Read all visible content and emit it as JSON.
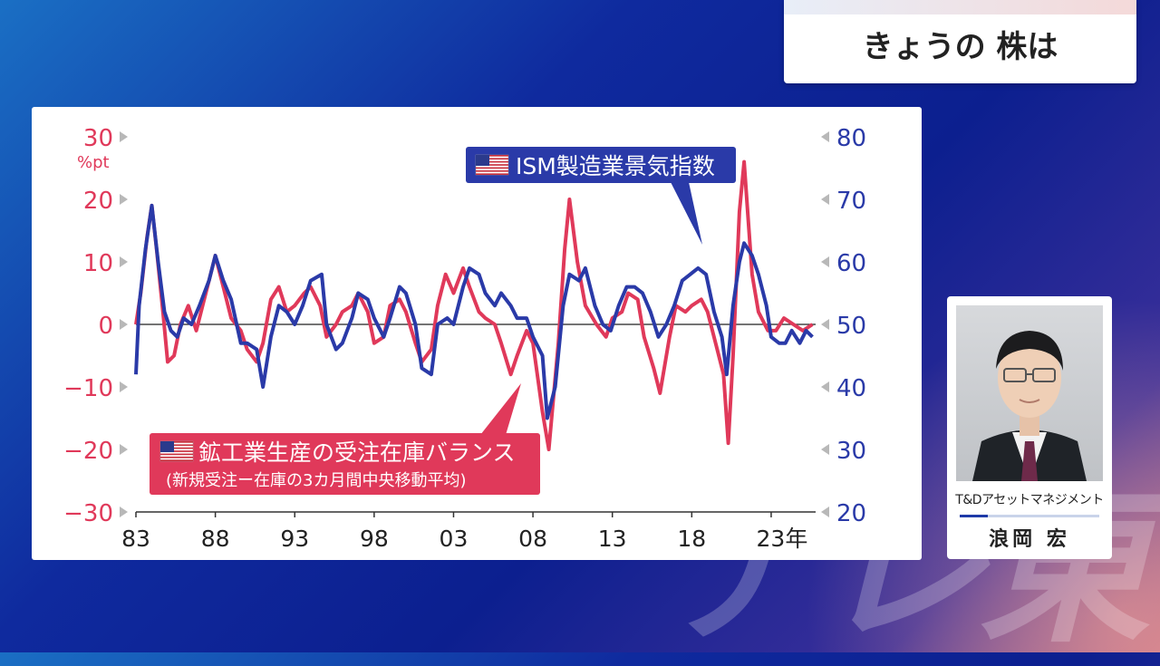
{
  "title_box": {
    "text": "きょうの 株は"
  },
  "watermark": {
    "text": "テレ東"
  },
  "person": {
    "org": "T&Dアセットマネジメント",
    "name": "浪岡 宏"
  },
  "chart_data": {
    "type": "line",
    "left_axis": {
      "ticks": [
        30,
        20,
        10,
        0,
        -10,
        -20,
        -30
      ],
      "tick_labels": [
        "30",
        "20",
        "10",
        "0",
        "−10",
        "−20",
        "−30"
      ],
      "unit": "%pt",
      "range": [
        -30,
        30
      ],
      "color": "#e0395a"
    },
    "right_axis": {
      "ticks": [
        80,
        70,
        60,
        50,
        40,
        30,
        20
      ],
      "tick_labels": [
        "80",
        "70",
        "60",
        "50",
        "40",
        "30",
        "20"
      ],
      "range": [
        20,
        80
      ],
      "color": "#2a3aa8"
    },
    "x_ticks": [
      {
        "year": 1983,
        "label": "83"
      },
      {
        "year": 1988,
        "label": "88"
      },
      {
        "year": 1993,
        "label": "93"
      },
      {
        "year": 1998,
        "label": "98"
      },
      {
        "year": 2003,
        "label": "03"
      },
      {
        "year": 2008,
        "label": "08"
      },
      {
        "year": 2013,
        "label": "13"
      },
      {
        "year": 2018,
        "label": "18"
      },
      {
        "year": 2023,
        "label": "23年"
      }
    ],
    "x_range": [
      1983,
      2025.8
    ],
    "annotations": {
      "ism": "ISM製造業景気指数",
      "balance": "鉱工業生産の受注在庫バランス",
      "balance_sub": "(新規受注ー在庫の3カ月間中央移動平均)"
    },
    "series": [
      {
        "name": "鉱工業生産の受注在庫バランス",
        "axis": "left",
        "color": "#e0395a",
        "points": [
          [
            1983.0,
            0
          ],
          [
            1983.3,
            5
          ],
          [
            1983.7,
            14
          ],
          [
            1984.0,
            19
          ],
          [
            1984.3,
            12
          ],
          [
            1984.7,
            2
          ],
          [
            1985.0,
            -6
          ],
          [
            1985.4,
            -5
          ],
          [
            1985.8,
            0
          ],
          [
            1986.3,
            3
          ],
          [
            1986.8,
            -1
          ],
          [
            1987.2,
            3
          ],
          [
            1987.7,
            8
          ],
          [
            1988.0,
            11
          ],
          [
            1988.5,
            6
          ],
          [
            1989.0,
            1
          ],
          [
            1989.6,
            -1
          ],
          [
            1990.0,
            -4
          ],
          [
            1990.6,
            -6
          ],
          [
            1991.0,
            -3
          ],
          [
            1991.5,
            4
          ],
          [
            1992.0,
            6
          ],
          [
            1992.5,
            2
          ],
          [
            1993.0,
            3
          ],
          [
            1993.6,
            5
          ],
          [
            1994.0,
            6
          ],
          [
            1994.6,
            3
          ],
          [
            1995.0,
            -2
          ],
          [
            1995.6,
            0
          ],
          [
            1996.0,
            2
          ],
          [
            1996.6,
            3
          ],
          [
            1997.0,
            5
          ],
          [
            1997.6,
            2
          ],
          [
            1998.0,
            -3
          ],
          [
            1998.6,
            -2
          ],
          [
            1999.0,
            3
          ],
          [
            1999.6,
            4
          ],
          [
            2000.0,
            2
          ],
          [
            2000.6,
            -3
          ],
          [
            2001.0,
            -6
          ],
          [
            2001.6,
            -4
          ],
          [
            2002.0,
            3
          ],
          [
            2002.5,
            8
          ],
          [
            2003.0,
            5
          ],
          [
            2003.6,
            9
          ],
          [
            2004.0,
            6
          ],
          [
            2004.6,
            2
          ],
          [
            2005.0,
            1
          ],
          [
            2005.6,
            0
          ],
          [
            2006.0,
            -3
          ],
          [
            2006.6,
            -8
          ],
          [
            2007.0,
            -5
          ],
          [
            2007.6,
            -1
          ],
          [
            2008.0,
            -3
          ],
          [
            2008.6,
            -14
          ],
          [
            2009.0,
            -20
          ],
          [
            2009.6,
            -3
          ],
          [
            2010.0,
            12
          ],
          [
            2010.3,
            20
          ],
          [
            2010.8,
            10
          ],
          [
            2011.3,
            3
          ],
          [
            2012.0,
            0
          ],
          [
            2012.6,
            -2
          ],
          [
            2013.0,
            1
          ],
          [
            2013.6,
            2
          ],
          [
            2014.0,
            5
          ],
          [
            2014.6,
            4
          ],
          [
            2015.0,
            -2
          ],
          [
            2015.6,
            -7
          ],
          [
            2016.0,
            -11
          ],
          [
            2016.6,
            -2
          ],
          [
            2017.0,
            3
          ],
          [
            2017.6,
            2
          ],
          [
            2018.0,
            3
          ],
          [
            2018.6,
            4
          ],
          [
            2019.0,
            2
          ],
          [
            2019.6,
            -4
          ],
          [
            2020.0,
            -8
          ],
          [
            2020.3,
            -19
          ],
          [
            2020.6,
            -5
          ],
          [
            2021.0,
            18
          ],
          [
            2021.3,
            26
          ],
          [
            2021.8,
            8
          ],
          [
            2022.2,
            2
          ],
          [
            2022.8,
            -1
          ],
          [
            2023.3,
            -1
          ],
          [
            2023.8,
            1
          ],
          [
            2024.4,
            0
          ],
          [
            2025.0,
            -1
          ],
          [
            2025.6,
            0
          ]
        ]
      },
      {
        "name": "ISM製造業景気指数",
        "axis": "right",
        "color": "#2a3aa8",
        "points": [
          [
            1983.0,
            42
          ],
          [
            1983.2,
            53
          ],
          [
            1983.6,
            62
          ],
          [
            1984.0,
            69
          ],
          [
            1984.4,
            60
          ],
          [
            1984.8,
            52
          ],
          [
            1985.2,
            49
          ],
          [
            1985.6,
            48
          ],
          [
            1986.0,
            51
          ],
          [
            1986.5,
            50
          ],
          [
            1987.0,
            53
          ],
          [
            1987.6,
            57
          ],
          [
            1988.0,
            61
          ],
          [
            1988.5,
            57
          ],
          [
            1989.0,
            54
          ],
          [
            1989.6,
            47
          ],
          [
            1990.0,
            47
          ],
          [
            1990.6,
            46
          ],
          [
            1991.0,
            40
          ],
          [
            1991.5,
            48
          ],
          [
            1992.0,
            53
          ],
          [
            1992.5,
            52
          ],
          [
            1993.0,
            50
          ],
          [
            1993.5,
            53
          ],
          [
            1994.0,
            57
          ],
          [
            1994.7,
            58
          ],
          [
            1995.0,
            50
          ],
          [
            1995.6,
            46
          ],
          [
            1996.0,
            47
          ],
          [
            1996.6,
            51
          ],
          [
            1997.0,
            55
          ],
          [
            1997.6,
            54
          ],
          [
            1998.0,
            51
          ],
          [
            1998.6,
            48
          ],
          [
            1999.0,
            51
          ],
          [
            1999.6,
            56
          ],
          [
            2000.0,
            55
          ],
          [
            2000.6,
            50
          ],
          [
            2001.0,
            43
          ],
          [
            2001.6,
            42
          ],
          [
            2002.0,
            50
          ],
          [
            2002.6,
            51
          ],
          [
            2003.0,
            50
          ],
          [
            2003.6,
            56
          ],
          [
            2004.0,
            59
          ],
          [
            2004.6,
            58
          ],
          [
            2005.0,
            55
          ],
          [
            2005.6,
            53
          ],
          [
            2006.0,
            55
          ],
          [
            2006.6,
            53
          ],
          [
            2007.0,
            51
          ],
          [
            2007.6,
            51
          ],
          [
            2008.0,
            48
          ],
          [
            2008.6,
            45
          ],
          [
            2008.9,
            35
          ],
          [
            2009.4,
            40
          ],
          [
            2009.9,
            53
          ],
          [
            2010.3,
            58
          ],
          [
            2010.9,
            57
          ],
          [
            2011.3,
            59
          ],
          [
            2011.9,
            53
          ],
          [
            2012.4,
            50
          ],
          [
            2012.9,
            49
          ],
          [
            2013.4,
            53
          ],
          [
            2013.9,
            56
          ],
          [
            2014.4,
            56
          ],
          [
            2014.9,
            55
          ],
          [
            2015.4,
            52
          ],
          [
            2015.9,
            48
          ],
          [
            2016.4,
            50
          ],
          [
            2016.9,
            53
          ],
          [
            2017.4,
            57
          ],
          [
            2017.9,
            58
          ],
          [
            2018.4,
            59
          ],
          [
            2018.9,
            58
          ],
          [
            2019.4,
            52
          ],
          [
            2019.9,
            48
          ],
          [
            2020.2,
            42
          ],
          [
            2020.6,
            53
          ],
          [
            2021.0,
            60
          ],
          [
            2021.3,
            63
          ],
          [
            2021.8,
            61
          ],
          [
            2022.2,
            58
          ],
          [
            2022.7,
            53
          ],
          [
            2023.0,
            48
          ],
          [
            2023.5,
            47
          ],
          [
            2023.9,
            47
          ],
          [
            2024.3,
            49
          ],
          [
            2024.8,
            47
          ],
          [
            2025.2,
            49
          ],
          [
            2025.6,
            48
          ]
        ]
      }
    ]
  }
}
